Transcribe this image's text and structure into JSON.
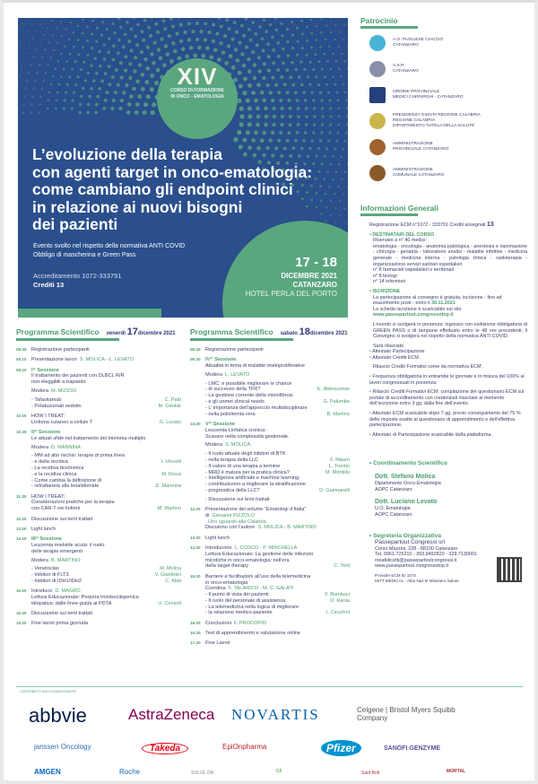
{
  "banner": {
    "edition": "XIV",
    "course_line1": "CORSO DI FORMAZIONE",
    "course_line2": "IN ONCO - EMATOLOGIA",
    "title_lines": [
      "L’evoluzione della terapia",
      "con agenti target in onco-ematologia:",
      "come cambiano gli endpoint clinici",
      "in relazione ai nuovi bisogni",
      "dei pazienti"
    ],
    "note1": "Evento svolto nel rispetto della normativa ANTI COVID",
    "note2": "Obbligo di mascherina e Green Pass",
    "accreditation": "Accreditamento 1072-333791",
    "credits": "Crediti 13",
    "dates": "17 - 18",
    "month": "DICEMBRE 2021",
    "city": "CATANZARO",
    "venue": "HOTEL PERLA DEL PORTO",
    "colors": {
      "blue": "#2a4f8c",
      "green": "#5aa77f"
    }
  },
  "program": [
    {
      "title": "Programma Scientifico",
      "day_word": "venerdì",
      "day_num": "17",
      "day_rest": "dicembre 2021",
      "items": [
        {
          "time": "08.45",
          "lines": [
            {
              "text": "Registrazione partecipanti"
            }
          ]
        },
        {
          "time": "09.10",
          "lines": [
            {
              "text": "Presentazione lavori",
              "inline": "S. MOLICA - L. LEVATO"
            }
          ]
        },
        {
          "time": "09.20",
          "session": "I^ Sessione",
          "lines": [
            {
              "text": "Il trattamento dei pazienti con DLBCL R/R"
            },
            {
              "text": "non eleggibili a trapianto"
            },
            {
              "text": "Modera",
              "inline": "M. MUSSO",
              "mod": true
            },
            {
              "text": "Tafasitamab",
              "speaker": "C. Patti",
              "bullet": true
            },
            {
              "text": "Polatuzumab vedotin",
              "speaker": "M. Gentile",
              "bullet": true
            }
          ]
        },
        {
          "time": "10.00",
          "lines": [
            {
              "text": "HOW I TREAT:"
            },
            {
              "text": "Linfoma cutaneo a cellule T",
              "speaker": "G. Lovato"
            }
          ]
        },
        {
          "time": "10.30",
          "session": "II^ Sessione",
          "lines": [
            {
              "text": "Le attuali sfide nel trattamento del mieloma multiplo"
            },
            {
              "text": "Modera",
              "inline": "D. MANNINA",
              "mod": true
            },
            {
              "text": "MM ad alto rischio: terapia di prima linea",
              "bullet": true
            },
            {
              "text": "e della recidiva",
              "speaker": "I. Vincelli",
              "cont": true
            },
            {
              "text": "La recidiva biochimica",
              "bullet": true
            },
            {
              "text": "e la recidiva clinica",
              "speaker": "M. Rossi",
              "cont": true
            },
            {
              "text": "Come cambia la definizione di",
              "bullet": true
            },
            {
              "text": "refrattarietà alla lenalidomide",
              "speaker": "D. Mannina",
              "cont": true
            }
          ]
        },
        {
          "time": "11.30",
          "lines": [
            {
              "text": "HOW I TREAT:"
            },
            {
              "text": "Considerazioni pratiche per la terapia"
            },
            {
              "text": "con CAR-T nei linfomi",
              "speaker": "M. Martino"
            }
          ]
        },
        {
          "time": "12.00",
          "lines": [
            {
              "text": "Discussione sui temi trattati"
            }
          ]
        },
        {
          "time": "13.00",
          "lines": [
            {
              "text": "Light lunch"
            }
          ]
        },
        {
          "time": "14.00",
          "session": "III^ Sessione",
          "lines": [
            {
              "text": "Leucemia mieloide acuta: il ruolo"
            },
            {
              "text": "delle terapie emergenti"
            },
            {
              "text": "Modera",
              "inline": "B. MARTINO",
              "mod": true
            },
            {
              "text": "Venetoclax",
              "speaker": "M. Molica",
              "bullet": true
            },
            {
              "text": "Inibitori di FLT3",
              "speaker": "V. Gianfelici",
              "bullet": true
            },
            {
              "text": "Inibitori di IDH1/IDH2",
              "speaker": "C. Alati",
              "bullet": true
            }
          ]
        },
        {
          "time": "15.00",
          "lines": [
            {
              "text": "Introduce",
              "inline": "D. MAGRO"
            },
            {
              "text": "Lettura Educazionale: Porpora trombocitopenica"
            },
            {
              "text": "idiopatica: dalle linee-guida ai PDTA",
              "speaker": "U. Consoli"
            }
          ]
        },
        {
          "time": "15.30",
          "lines": [
            {
              "text": "Discussione sui temi trattati"
            }
          ]
        },
        {
          "time": "16.30",
          "lines": [
            {
              "text": "Fine lavori prima giornata"
            }
          ]
        }
      ]
    },
    {
      "title": "Programma Scientifico",
      "day_word": "sabato",
      "day_num": "18",
      "day_rest": "dicembre 2021",
      "items": [
        {
          "time": "08.45",
          "lines": [
            {
              "text": "Registrazione partecipanti"
            }
          ]
        },
        {
          "time": "09.30",
          "session": "IV^ Sessione",
          "lines": [
            {
              "text": "Attualità in tema di malattie mieloproliferative"
            },
            {
              "text": "Modera",
              "inline": "L. LEVATO",
              "mod": true
            },
            {
              "text": "LMC: è possibile migliorare le chance",
              "bullet": true
            },
            {
              "text": "di successo della TFR?",
              "speaker": "E. Abbruzzese",
              "cont": true
            },
            {
              "text": "La gestione corrente della mielofibrosi",
              "bullet": true
            },
            {
              "text": "e gli unmet clinical needs",
              "speaker": "G. Palumbo",
              "cont": true
            },
            {
              "text": "L’ importanza dell’approccio multidisciplinare",
              "bullet": true
            },
            {
              "text": "nella policitemia vera",
              "speaker": "B. Martino",
              "cont": true
            }
          ]
        },
        {
          "time": "10.30",
          "session": "V^ Sessione",
          "lines": [
            {
              "text": "Leucemia Linfatica cronica:"
            },
            {
              "text": "Scavare nella complessità gestionale."
            },
            {
              "text": "Modera",
              "inline": "S. MOLICA",
              "mod": true
            },
            {
              "text": "Il ruolo attuale degli inibitori di BTK",
              "bullet": true
            },
            {
              "text": "nella terapia della LLC",
              "speaker": "F. Mauro",
              "cont": true
            },
            {
              "text": "Il valore di una terapia a termine",
              "speaker": "L. Trentin",
              "bullet": true
            },
            {
              "text": "MRD è matura per la pratica clinica?",
              "speaker": "M. Montillo",
              "bullet": true
            },
            {
              "text": "Intelligenza artificiale e machine learning:",
              "bullet": true
            },
            {
              "text": "contribuiscono a migliorare la stratificazione",
              "cont": true
            },
            {
              "text": "prognostica della LLC?",
              "speaker": "D. Giannarelli",
              "cont": true
            },
            {
              "text": "Discussione sui temi trattati",
              "bullet": true,
              "gap": true
            }
          ]
        },
        {
          "time": "12.00",
          "lines": [
            {
              "text": "Presentazione del volume “Ematologi d’Italia”"
            },
            {
              "text": "di",
              "inline": "Giovanni PIZZOLO"
            },
            {
              "text": "",
              "inline": "Uno sguardo alla Calabria"
            },
            {
              "text": "Discutono con l’autore",
              "inline": "S. MOLICA - B. MARTINO"
            }
          ]
        },
        {
          "time": "13.30",
          "lines": [
            {
              "text": "Light lunch"
            }
          ]
        },
        {
          "time": "14.30",
          "lines": [
            {
              "text": "Introducono",
              "inline": "L. COSCO - P. MINCHELLA"
            },
            {
              "text": "Lettura Educazionale: La gestione delle infezioni"
            },
            {
              "text": "micotiche in onco-ematologia: nell’era"
            },
            {
              "text": "della target therapy",
              "speaker": "C. Torti"
            }
          ]
        },
        {
          "time": "15.00",
          "lines": [
            {
              "text": "Barriere e facilitazioni all’uso della telemedicina"
            },
            {
              "text": "in onco-ematologia"
            },
            {
              "text": "Coordina",
              "inline": "F. TALARICO - M. C. GALATI"
            },
            {
              "text": "Il punto di vista dei pazienti",
              "speaker": "F. Bombaci",
              "bullet": true
            },
            {
              "text": "Il ruolo del personale di assistenza",
              "speaker": "O. Rania",
              "bullet": true
            },
            {
              "text": "La telemedicina nella logica di migliorare",
              "bullet": true
            },
            {
              "text": "la relazione medico-paziente",
              "speaker": "I. Cecchini",
              "cont": true
            }
          ]
        },
        {
          "time": "16.00",
          "lines": [
            {
              "text": "Conclusioni",
              "inline": "F. PROCOPIO"
            }
          ]
        },
        {
          "time": "16.30",
          "lines": [
            {
              "text": "Test di apprendimento e valutazione online"
            }
          ]
        },
        {
          "time": "17.30",
          "lines": [
            {
              "text": "Fine Lavori"
            }
          ]
        }
      ]
    }
  ],
  "patrocinio": {
    "title": "Patrocinio",
    "items": [
      {
        "lines": [
          "A.O. PUGLIESE CIACCIO",
          "CATANZARO"
        ],
        "color": "#4ab3d8"
      },
      {
        "lines": [
          "A.S.P.",
          "CATANZARO"
        ],
        "color": "#8a8fa8"
      },
      {
        "lines": [
          "ORDINE PROVINCIALE",
          "MEDICI CHIRURGHI - CATANZARO"
        ],
        "color": "#25407a"
      },
      {
        "lines": [
          "PRESIDENZA GIUNTA REGIONE CALABRIA",
          "REGIONE CALABRIA",
          "DIPARTIMENTO TUTELA DELLA SALUTE"
        ],
        "color": "#c9b54a"
      },
      {
        "lines": [
          "AMMINISTRAZIONE",
          "PROVINCIALE CATANZARO"
        ],
        "color": "#a0622e"
      },
      {
        "lines": [
          "AMMINISTRAZIONE",
          "COMUNALE CATANZARO"
        ],
        "color": "#8a5a2a"
      }
    ]
  },
  "info": {
    "title": "Informazioni Generali",
    "registration": "Registrazione ECM n°1072 - 333791  Crediti assegnati",
    "registration_credits": "13",
    "destinatari_title": "DESTINATARI DEL CORSO",
    "destinatari": [
      "Riservato a n° 40 medici:",
      "ematologia - oncologia - anatomia patologica - anestesia e rianimazione - chirurgia - geriatria - laboratorio analisi - malattie infettive - medicina generale - medicina interna - patologia clinica - radioterapia - organizzazione servizi sanitari ospedalieri",
      "n°  8 farmacisti ospedalieri o territoriali",
      "n°  8 biologi",
      "n° 14 infermieri"
    ],
    "iscrizione_title": "ISCRIZIONE",
    "iscrizione_text": "La partecipazione al convegno è gratuita, iscrizione - fino ad esaurimento posti -  entro il",
    "iscrizione_date": "30.11.2021",
    "scheda": "La scheda iscrizione è scaricabile sul sito",
    "website": "www.passepartout.congressotop.it",
    "presenza": "L’evento si svolgerà in presenza: ingresso con esibizione obbligatoria di GREEN PASS o di tampone effettuato entro le 48 ore precedenti; il Convegno si svolgerà nel rispetto della normativa ANTI COVID.",
    "rilasciato": "Sarà rilasciato",
    "attestati": [
      "Attestato Partecipazione",
      "Attestato Crediti ECM"
    ],
    "rilascio": "Rilascio Crediti Formativi come da normativa ECM:",
    "rules": [
      "Frequenza obbligatoria in entrambe le giornate e in misura del 100% ai lavori congressuali in presenza.",
      "Rilascio Crediti Formativi ECM: compilazione del questionario ECM sul portale di accreditamento con credenziali rilasciate al momento dell’iscrizione entro 3 gg. dalla fine dell’evento.",
      "Attestato ECM scaricabile dopo 7 gg. previo conseguimento del 75 % delle risposte esatte al questionario di apprendimento e dell’effettiva partecipazione.",
      "Attestato di Partecipazione scaricabile dalla piattaforma."
    ]
  },
  "coordinamento": {
    "title": "Coordinamento Scientifico",
    "people": [
      {
        "name": "Dott. Stefano Molica",
        "lines": [
          "Dipartimento Onco-Ematologia",
          "AOPC Catanzaro"
        ]
      },
      {
        "name": "Dott. Luciano Levato",
        "lines": [
          "U.O. Ematologia",
          "AOPC Catanzaro"
        ]
      }
    ]
  },
  "segreteria": {
    "title": "Segreteria Organizzativa",
    "company": "Passepartout Congressi srl",
    "lines": [
      "Corso Mazzini, 228 - 88100 Catanzaro",
      "Tel. 0961.725210 - 393.9492820 - 329.7130001",
      "rosafelicetti@passepartoutcongressi.it",
      "www.passepartout.congressotop.it"
    ],
    "provider": [
      "Provider ECM ID 1072",
      "MITT MEDICAL - Albo Naz.le Ministero Salute"
    ],
    "qr_icon": "qr-code-icon"
  },
  "sponsors": {
    "label": "CONTRIBUTO NON CONDIZIONANTE",
    "logos": [
      {
        "name": "abbvie",
        "color": "#071d49"
      },
      {
        "name": "AstraZeneca",
        "color": "#830051"
      },
      {
        "name": "NOVARTIS",
        "color": "#0460a9"
      },
      {
        "name": "Celgene | Bristol Myers Squibb Company",
        "color": "#595454"
      },
      {
        "name": "janssen Oncology",
        "color": "#2e6fb5"
      },
      {
        "name": "Takeda",
        "color": "#e60012"
      },
      {
        "name": "EpiOnpharma",
        "color": "#b8222a"
      },
      {
        "name": "Pfizer",
        "color": "#0093d0"
      },
      {
        "name": "SANOFI GENZYME",
        "color": "#5b4c9a"
      },
      {
        "name": "AMGEN",
        "color": "#0063c3"
      },
      {
        "name": "Roche",
        "color": "#1b6ab5"
      },
      {
        "name": "SOLVE ON",
        "color": "#888"
      },
      {
        "name": "CF",
        "color": "#3b8a3b"
      },
      {
        "name": "Sant Bolt",
        "color": "#a33"
      },
      {
        "name": "MORTAL",
        "color": "#a33"
      }
    ]
  }
}
